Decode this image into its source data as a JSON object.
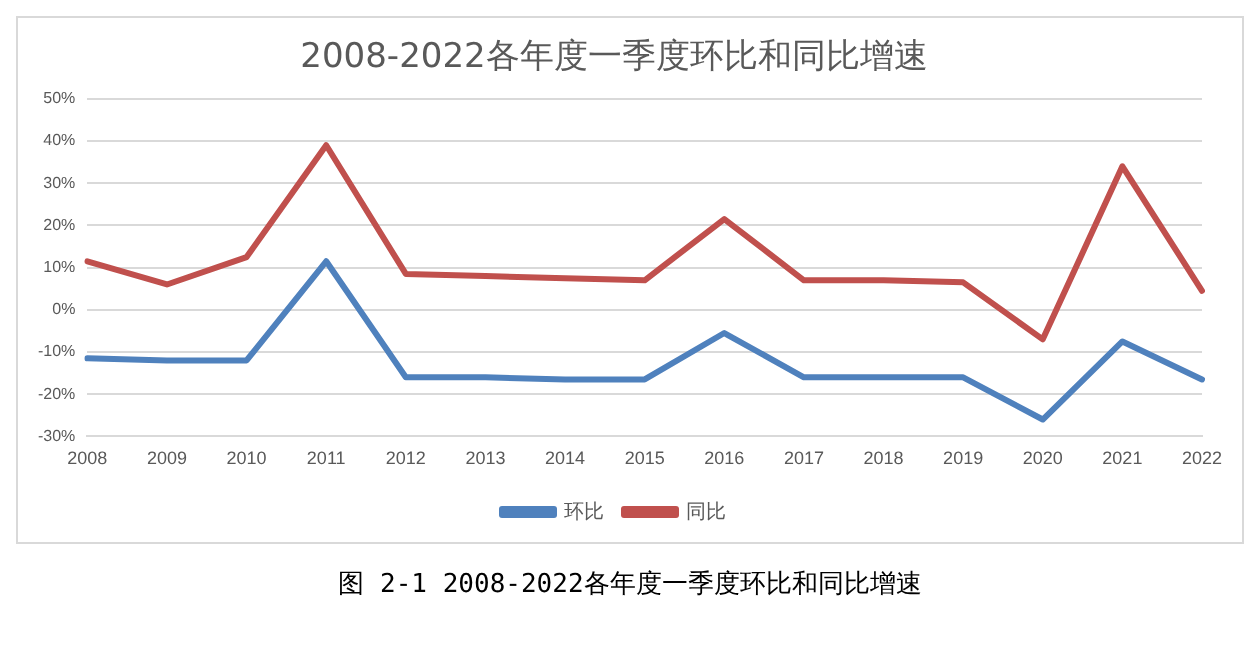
{
  "chart_data": {
    "type": "line",
    "title": "2008-2022各年度一季度环比和同比增速",
    "categories": [
      "2008",
      "2009",
      "2010",
      "2011",
      "2012",
      "2013",
      "2014",
      "2015",
      "2016",
      "2017",
      "2018",
      "2019",
      "2020",
      "2021",
      "2022"
    ],
    "series": [
      {
        "name": "环比",
        "color": "#4f81bd",
        "values": [
          -11.5,
          -12,
          -12,
          11.5,
          -16,
          -16,
          -16.5,
          -16.5,
          -5.5,
          -16,
          -16,
          -16,
          -26,
          -7.5,
          -16.5
        ]
      },
      {
        "name": "同比",
        "color": "#c0504d",
        "values": [
          11.5,
          6,
          12.5,
          39,
          8.5,
          8,
          7.5,
          7,
          21.5,
          7,
          7,
          6.5,
          -7,
          34,
          4.5
        ]
      }
    ],
    "ylim": [
      -30,
      50
    ],
    "yticks": [
      {
        "value": -30,
        "label": "-30%"
      },
      {
        "value": -20,
        "label": "-20%"
      },
      {
        "value": -10,
        "label": "-10%"
      },
      {
        "value": 0,
        "label": "0%"
      },
      {
        "value": 10,
        "label": "10%"
      },
      {
        "value": 20,
        "label": "20%"
      },
      {
        "value": 30,
        "label": "30%"
      },
      {
        "value": 40,
        "label": "40%"
      },
      {
        "value": 50,
        "label": "50%"
      }
    ],
    "grid": "y",
    "legend": "bottom",
    "marker": "none",
    "line_style": "solid",
    "annotations": [
      "图 2-1 2008-2022各年度一季度环比和同比增速"
    ]
  }
}
